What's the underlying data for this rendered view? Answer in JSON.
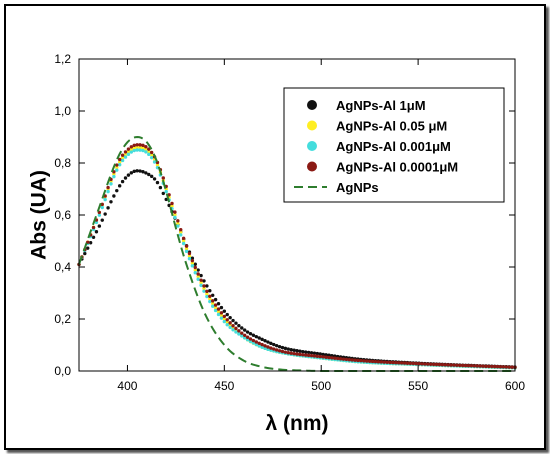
{
  "chart_data": {
    "type": "scatter",
    "xlabel": "λ (nm)",
    "ylabel": "Abs (UA)",
    "xlim": [
      375,
      600
    ],
    "ylim": [
      0,
      1.2
    ],
    "x_ticks": [
      "400",
      "450",
      "500",
      "550",
      "600"
    ],
    "y_ticks": [
      "0,0",
      "0,2",
      "0,4",
      "0,6",
      "0,8",
      "1,0",
      "1,2"
    ],
    "grid": false,
    "legend_position": "top-right",
    "series": [
      {
        "name": "AgNPs-Al 1μM",
        "style": "dots",
        "color": "#111111",
        "x": [
          375,
          385,
          395,
          400,
          405,
          410,
          415,
          420,
          425,
          430,
          440,
          450,
          460,
          470,
          480,
          500,
          520,
          550,
          600
        ],
        "y": [
          0.41,
          0.55,
          0.7,
          0.75,
          0.77,
          0.76,
          0.73,
          0.66,
          0.58,
          0.49,
          0.34,
          0.23,
          0.16,
          0.12,
          0.09,
          0.065,
          0.045,
          0.03,
          0.015
        ]
      },
      {
        "name": "AgNPs-Al 0.05 μM",
        "style": "dots",
        "color": "#ffee22",
        "x": [
          375,
          385,
          395,
          400,
          405,
          410,
          415,
          420,
          425,
          430,
          440,
          450,
          460,
          470,
          480,
          500,
          520,
          550,
          600
        ],
        "y": [
          0.41,
          0.6,
          0.79,
          0.84,
          0.86,
          0.85,
          0.8,
          0.7,
          0.59,
          0.48,
          0.31,
          0.2,
          0.13,
          0.09,
          0.07,
          0.05,
          0.035,
          0.025,
          0.012
        ]
      },
      {
        "name": "AgNPs-Al 0.001μM",
        "style": "dots",
        "color": "#44dddd",
        "x": [
          375,
          385,
          395,
          400,
          405,
          410,
          415,
          420,
          425,
          430,
          440,
          450,
          460,
          470,
          480,
          500,
          520,
          550,
          600
        ],
        "y": [
          0.41,
          0.59,
          0.78,
          0.83,
          0.85,
          0.84,
          0.79,
          0.69,
          0.58,
          0.47,
          0.3,
          0.19,
          0.13,
          0.09,
          0.07,
          0.05,
          0.035,
          0.025,
          0.012
        ]
      },
      {
        "name": "AgNPs-Al 0.0001μM",
        "style": "dots",
        "color": "#8b1a14",
        "x": [
          375,
          385,
          395,
          400,
          405,
          410,
          415,
          420,
          425,
          430,
          440,
          450,
          460,
          470,
          480,
          500,
          520,
          550,
          600
        ],
        "y": [
          0.41,
          0.6,
          0.8,
          0.85,
          0.87,
          0.86,
          0.81,
          0.71,
          0.6,
          0.49,
          0.32,
          0.21,
          0.14,
          0.1,
          0.075,
          0.055,
          0.04,
          0.028,
          0.014
        ]
      },
      {
        "name": "AgNPs",
        "style": "dashed",
        "color": "#2e7d2e",
        "x": [
          375,
          385,
          395,
          400,
          405,
          410,
          415,
          420,
          425,
          430,
          440,
          450,
          460,
          470,
          480,
          490,
          500,
          520,
          600
        ],
        "y": [
          0.41,
          0.62,
          0.82,
          0.88,
          0.9,
          0.88,
          0.81,
          0.69,
          0.55,
          0.42,
          0.22,
          0.1,
          0.04,
          0.015,
          0.005,
          0.002,
          0.0,
          0.0,
          0.0
        ]
      }
    ]
  }
}
